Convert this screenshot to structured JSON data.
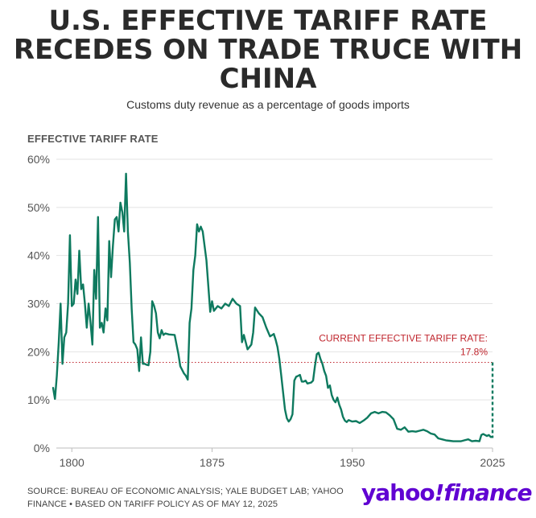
{
  "header": {
    "title_lines": [
      "U.S. EFFECTIVE TARIFF RATE",
      "RECEDES ON TRADE TRUCE WITH",
      "CHINA"
    ],
    "subtitle": "Customs duty revenue as a percentage of goods imports"
  },
  "footer": {
    "source_line1": "SOURCE: BUREAU OF ECONOMIC ANALYSIS; YALE BUDGET LAB; YAHOO",
    "source_line2": "FINANCE • BASED ON TARIFF POLICY AS OF MAY 12, 2025",
    "logo_text_1": "yahoo",
    "logo_text_2": "!",
    "logo_text_3": "finance"
  },
  "colors": {
    "line": "#0e7a5f",
    "annotation": "#c0262e",
    "grid": "#e3e3e3",
    "text": "#555555"
  },
  "chart_data": {
    "type": "line",
    "title": "U.S. EFFECTIVE TARIFF RATE RECEDES ON TRADE TRUCE WITH CHINA",
    "ylabel": "EFFECTIVE TARIFF RATE",
    "xlim": [
      1790,
      2025
    ],
    "ylim": [
      0,
      60
    ],
    "x_ticks": [
      1800,
      1875,
      1950,
      2025
    ],
    "y_ticks": [
      0,
      10,
      20,
      30,
      40,
      50,
      60
    ],
    "y_tick_labels": [
      "0%",
      "10%",
      "20%",
      "30%",
      "40%",
      "50%",
      "60%"
    ],
    "x_tick_labels": [
      "1800",
      "1875",
      "1950",
      "2025"
    ],
    "grid": true,
    "annotation": {
      "label_line1": "CURRENT EFFECTIVE TARIFF RATE:",
      "label_line2": "17.8%",
      "value": 17.8
    },
    "series": [
      {
        "x": [
          1790,
          1791,
          1792,
          1793,
          1794,
          1795,
          1796,
          1797,
          1798,
          1799,
          1800,
          1801,
          1802,
          1803,
          1804,
          1805,
          1806,
          1807,
          1808,
          1809,
          1810,
          1811,
          1812,
          1813,
          1814,
          1815,
          1816,
          1817,
          1818,
          1819,
          1820,
          1821,
          1822,
          1823,
          1824,
          1825,
          1826,
          1827,
          1828,
          1829,
          1830,
          1831,
          1832,
          1833,
          1834,
          1835,
          1836,
          1837,
          1838,
          1839,
          1840,
          1841,
          1842,
          1843,
          1844,
          1845,
          1846,
          1847,
          1848,
          1849,
          1850,
          1852,
          1855,
          1857,
          1858,
          1860,
          1861,
          1862,
          1863,
          1864,
          1865,
          1866,
          1867,
          1868,
          1869,
          1870,
          1872,
          1874,
          1875,
          1876,
          1878,
          1880,
          1882,
          1884,
          1886,
          1888,
          1890,
          1891,
          1892,
          1894,
          1895,
          1896,
          1897,
          1898,
          1900,
          1902,
          1904,
          1906,
          1908,
          1909,
          1910,
          1911,
          1912,
          1913,
          1914,
          1915,
          1916,
          1917,
          1918,
          1919,
          1920,
          1921,
          1922,
          1923,
          1924,
          1925,
          1926,
          1928,
          1929,
          1930,
          1931,
          1932,
          1933,
          1934,
          1935,
          1936,
          1937,
          1938,
          1939,
          1940,
          1941,
          1942,
          1943,
          1944,
          1945,
          1946,
          1947,
          1948,
          1950,
          1952,
          1954,
          1956,
          1958,
          1960,
          1962,
          1964,
          1966,
          1968,
          1970,
          1972,
          1974,
          1976,
          1978,
          1980,
          1982,
          1984,
          1986,
          1988,
          1990,
          1992,
          1994,
          1996,
          1998,
          2000,
          2002,
          2004,
          2006,
          2008,
          2010,
          2012,
          2014,
          2016,
          2018,
          2019,
          2020,
          2021,
          2022,
          2023,
          2024
        ],
        "values": [
          12.5,
          10.2,
          15,
          22,
          30,
          17.5,
          23,
          24,
          30,
          44.2,
          29.5,
          30,
          35,
          32,
          41,
          33,
          34,
          30,
          25,
          30,
          26,
          21.5,
          37,
          31,
          48,
          25,
          26,
          24,
          29,
          26.5,
          43,
          35.5,
          42,
          47.5,
          48,
          45,
          51,
          49,
          45,
          57,
          45,
          38.5,
          29,
          22,
          21.5,
          20.5,
          16,
          23,
          17.5,
          17.5,
          17.3,
          17.2,
          20,
          30.5,
          29.5,
          28,
          24,
          22.8,
          24.5,
          23.5,
          23.8,
          23.6,
          23.5,
          19.5,
          17,
          15.5,
          15,
          14.2,
          26,
          29,
          37,
          40,
          46.5,
          45,
          46,
          45,
          39,
          28.3,
          30.5,
          28.5,
          29.5,
          29,
          30,
          29.5,
          31,
          30,
          29.5,
          22,
          23.5,
          20.5,
          21,
          21.5,
          24,
          29.2,
          28,
          27.2,
          25,
          23.2,
          23.7,
          22.5,
          21,
          18.5,
          15,
          11.5,
          8,
          6.2,
          5.5,
          6,
          7,
          14,
          14.8,
          15,
          15.2,
          13.8,
          13.8,
          14,
          13.4,
          13.6,
          14,
          17,
          19.5,
          19.8,
          18.5,
          17.5,
          16,
          15,
          12.5,
          13,
          11,
          10,
          9.5,
          10.5,
          9,
          8,
          6.5,
          5.7,
          5.4,
          5.8,
          5.5,
          5.6,
          5.2,
          5.7,
          6.3,
          7.2,
          7.5,
          7.2,
          7.5,
          7.4,
          6.8,
          6,
          4,
          3.8,
          4.3,
          3.4,
          3.5,
          3.4,
          3.6,
          3.8,
          3.5,
          3,
          2.8,
          2,
          1.8,
          1.6,
          1.5,
          1.4,
          1.4,
          1.4,
          1.6,
          1.8,
          1.4,
          1.5,
          1.4,
          2.7,
          2.9,
          2.7,
          2.5,
          2.7,
          2.3
        ]
      }
    ],
    "current": {
      "x": 2025,
      "value": 17.8,
      "style": "dashed"
    }
  }
}
